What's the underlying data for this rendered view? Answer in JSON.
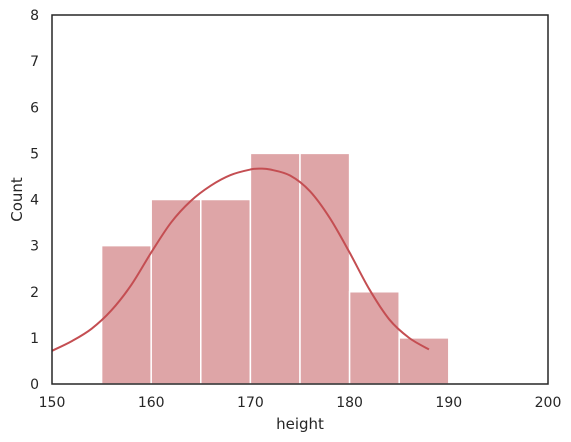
{
  "chart_data": {
    "type": "bar",
    "subtype": "histogram-with-kde",
    "title": "",
    "xlabel": "height",
    "ylabel": "Count",
    "xlim": [
      150,
      200
    ],
    "ylim": [
      0,
      8
    ],
    "xticks": [
      150,
      160,
      170,
      180,
      190,
      200
    ],
    "yticks": [
      0,
      1,
      2,
      3,
      4,
      5,
      6,
      7,
      8
    ],
    "grid": false,
    "bins": [
      {
        "x0": 155,
        "x1": 160,
        "count": 3
      },
      {
        "x0": 160,
        "x1": 165,
        "count": 4
      },
      {
        "x0": 165,
        "x1": 170,
        "count": 4
      },
      {
        "x0": 170,
        "x1": 175,
        "count": 5
      },
      {
        "x0": 175,
        "x1": 180,
        "count": 5
      },
      {
        "x0": 180,
        "x1": 185,
        "count": 2
      },
      {
        "x0": 185,
        "x1": 190,
        "count": 1
      }
    ],
    "kde": {
      "x": [
        150,
        152,
        154,
        156,
        158,
        160,
        162,
        164,
        166,
        168,
        170,
        171,
        172,
        174,
        176,
        178,
        180,
        182,
        184,
        186,
        188
      ],
      "y": [
        0.72,
        0.93,
        1.2,
        1.6,
        2.15,
        2.85,
        3.5,
        3.97,
        4.3,
        4.53,
        4.65,
        4.67,
        4.65,
        4.52,
        4.18,
        3.6,
        2.85,
        2.05,
        1.4,
        1.0,
        0.75
      ]
    },
    "colors": {
      "bar_fill": "#dea5a7",
      "bar_edge": "#ffffff",
      "kde_line": "#c44e52",
      "axis": "#262626"
    }
  }
}
